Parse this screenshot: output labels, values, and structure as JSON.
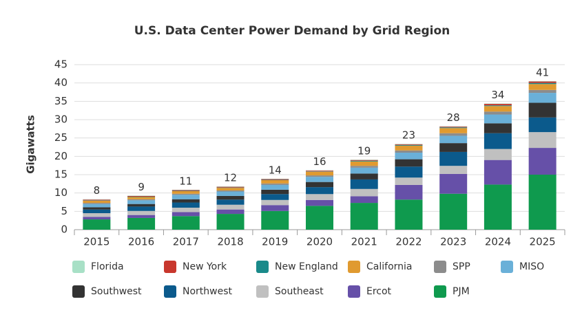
{
  "chart_data": {
    "type": "stacked-bar",
    "title": "U.S. Data Center Power Demand by Grid Region",
    "y_label": "Gigawatts",
    "categories": [
      "2015",
      "2016",
      "2017",
      "2018",
      "2019",
      "2020",
      "2021",
      "2022",
      "2023",
      "2024",
      "2025"
    ],
    "totals": [
      8,
      9,
      11,
      12,
      14,
      16,
      19,
      23,
      28,
      34,
      41
    ],
    "ylim": [
      0,
      45
    ],
    "yticks": [
      0,
      5,
      10,
      15,
      20,
      25,
      30,
      35,
      40,
      45
    ],
    "grid": true,
    "series": [
      {
        "name": "Florida",
        "color": "#a8e0c6",
        "values": [
          0.1,
          0.1,
          0.1,
          0.1,
          0.1,
          0.1,
          0.1,
          0.1,
          0.1,
          0.1,
          0.1
        ]
      },
      {
        "name": "New York",
        "color": "#c8372d",
        "values": [
          0.2,
          0.2,
          0.2,
          0.2,
          0.2,
          0.2,
          0.2,
          0.2,
          0.2,
          0.4,
          0.4
        ]
      },
      {
        "name": "New England",
        "color": "#1a8a8a",
        "values": [
          0.1,
          0.1,
          0.1,
          0.1,
          0.1,
          0.1,
          0.2,
          0.2,
          0.2,
          0.2,
          0.3
        ]
      },
      {
        "name": "California",
        "color": "#e09a30",
        "values": [
          0.6,
          0.6,
          0.7,
          0.7,
          0.9,
          1.0,
          1.2,
          1.3,
          1.4,
          1.5,
          1.6
        ]
      },
      {
        "name": "SPP",
        "color": "#8c8c8c",
        "values": [
          0.3,
          0.3,
          0.3,
          0.3,
          0.4,
          0.4,
          0.5,
          0.6,
          0.7,
          0.8,
          0.8
        ]
      },
      {
        "name": "MISO",
        "color": "#6ab0d8",
        "values": [
          0.9,
          1.0,
          1.2,
          1.2,
          1.3,
          1.4,
          1.6,
          1.8,
          2.0,
          2.4,
          2.7
        ]
      },
      {
        "name": "Southwest",
        "color": "#333333",
        "values": [
          0.6,
          0.7,
          0.9,
          1.0,
          1.2,
          1.4,
          1.6,
          2.0,
          2.4,
          2.7,
          4.0
        ]
      },
      {
        "name": "Northwest",
        "color": "#0b5a8c",
        "values": [
          1.0,
          1.2,
          1.4,
          1.4,
          1.6,
          1.9,
          2.6,
          3.0,
          3.8,
          4.3,
          4.0
        ]
      },
      {
        "name": "Southeast",
        "color": "#c0c0c0",
        "values": [
          1.0,
          1.1,
          1.2,
          1.3,
          1.4,
          1.6,
          2.0,
          2.0,
          2.2,
          3.0,
          4.3
        ]
      },
      {
        "name": "Ercot",
        "color": "#6650a8",
        "values": [
          0.7,
          0.8,
          1.1,
          1.2,
          1.6,
          1.6,
          1.8,
          4.0,
          5.4,
          6.7,
          7.3
        ]
      },
      {
        "name": "PJM",
        "color": "#0f9a4e",
        "values": [
          2.8,
          3.2,
          3.7,
          4.3,
          5.1,
          6.5,
          7.3,
          8.2,
          9.8,
          12.3,
          15.0
        ]
      }
    ]
  }
}
